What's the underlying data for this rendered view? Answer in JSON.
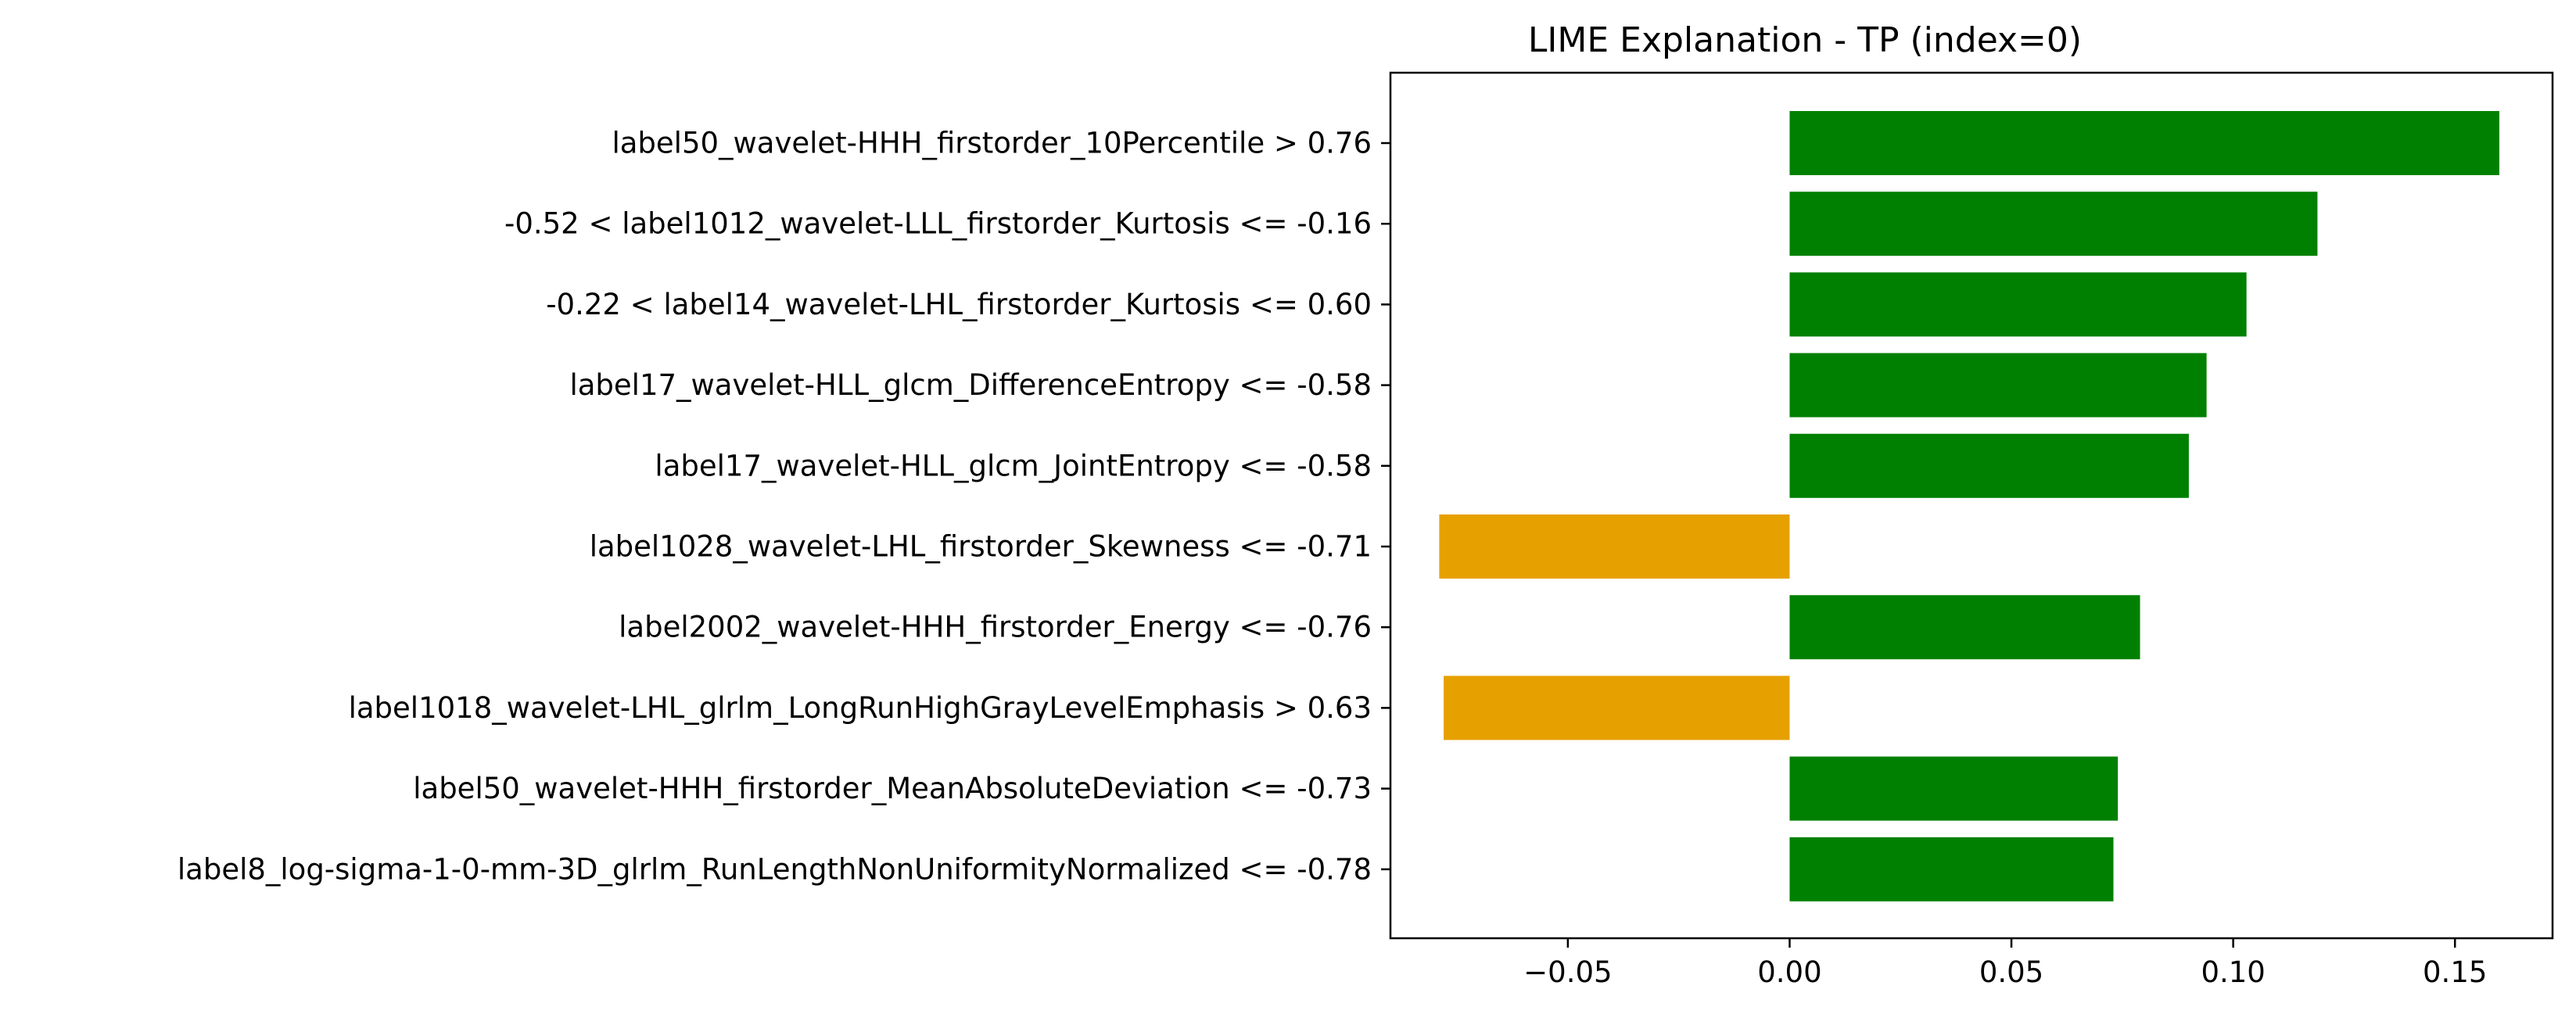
{
  "chart_data": {
    "type": "bar",
    "orientation": "horizontal",
    "title": "LIME Explanation - TP (index=0)",
    "xlabel": "",
    "ylabel": "",
    "xlim": [
      -0.09,
      0.172
    ],
    "xticks": [
      -0.05,
      0.0,
      0.05,
      0.1,
      0.15
    ],
    "xtick_labels": [
      "−0.05",
      "0.00",
      "0.05",
      "0.10",
      "0.15"
    ],
    "grid": false,
    "colors": {
      "positive": "#008000",
      "negative": "#e6a100"
    },
    "categories": [
      "label50_wavelet-HHH_firstorder_10Percentile > 0.76",
      "-0.52 < label1012_wavelet-LLL_firstorder_Kurtosis <= -0.16",
      "-0.22 < label14_wavelet-LHL_firstorder_Kurtosis <= 0.60",
      "label17_wavelet-HLL_glcm_DifferenceEntropy <= -0.58",
      "label17_wavelet-HLL_glcm_JointEntropy <= -0.58",
      "label1028_wavelet-LHL_firstorder_Skewness <= -0.71",
      "label2002_wavelet-HHH_firstorder_Energy <= -0.76",
      "label1018_wavelet-LHL_glrlm_LongRunHighGrayLevelEmphasis > 0.63",
      "label50_wavelet-HHH_firstorder_MeanAbsoluteDeviation <= -0.73",
      "label8_log-sigma-1-0-mm-3D_glrlm_RunLengthNonUniformityNormalized <= -0.78"
    ],
    "values": [
      0.16,
      0.119,
      0.103,
      0.094,
      0.09,
      -0.079,
      0.079,
      -0.078,
      0.074,
      0.073
    ]
  }
}
